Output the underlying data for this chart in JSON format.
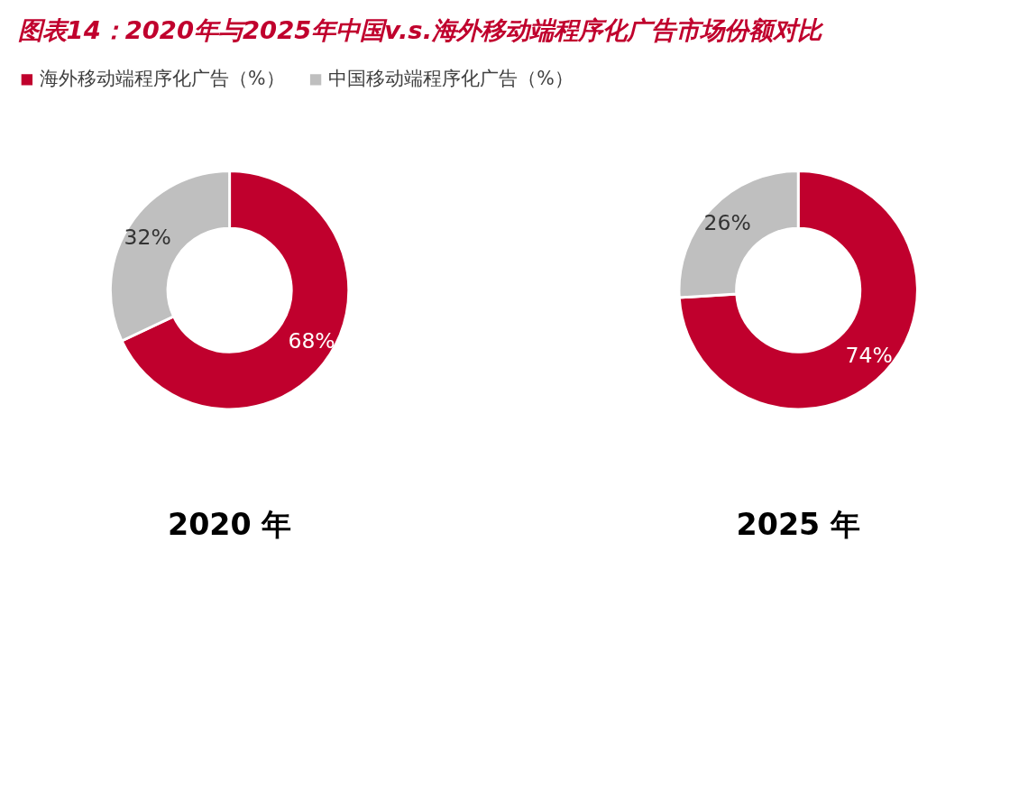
{
  "chart_data": [
    {
      "type": "donut",
      "title": "图表14：2020年与2025年中国v.s.海外移动端程序化广告市场份额对比",
      "xlabel": "2020 年",
      "categories": [
        "海外移动端程序化广告（%）",
        "中国移动端程序化广告（%）"
      ],
      "values": [
        68,
        32
      ],
      "colors": [
        "#c0002d",
        "#bfbfbf"
      ],
      "value_labels": [
        "68%",
        "32%"
      ],
      "legend": "top"
    },
    {
      "type": "donut",
      "xlabel": "2025 年",
      "categories": [
        null,
        null
      ],
      "values": [
        74,
        26
      ],
      "colors": [
        "#c0002d",
        "#bfbfbf"
      ],
      "value_labels": [
        "74%",
        "26%"
      ],
      "legend": false
    }
  ]
}
